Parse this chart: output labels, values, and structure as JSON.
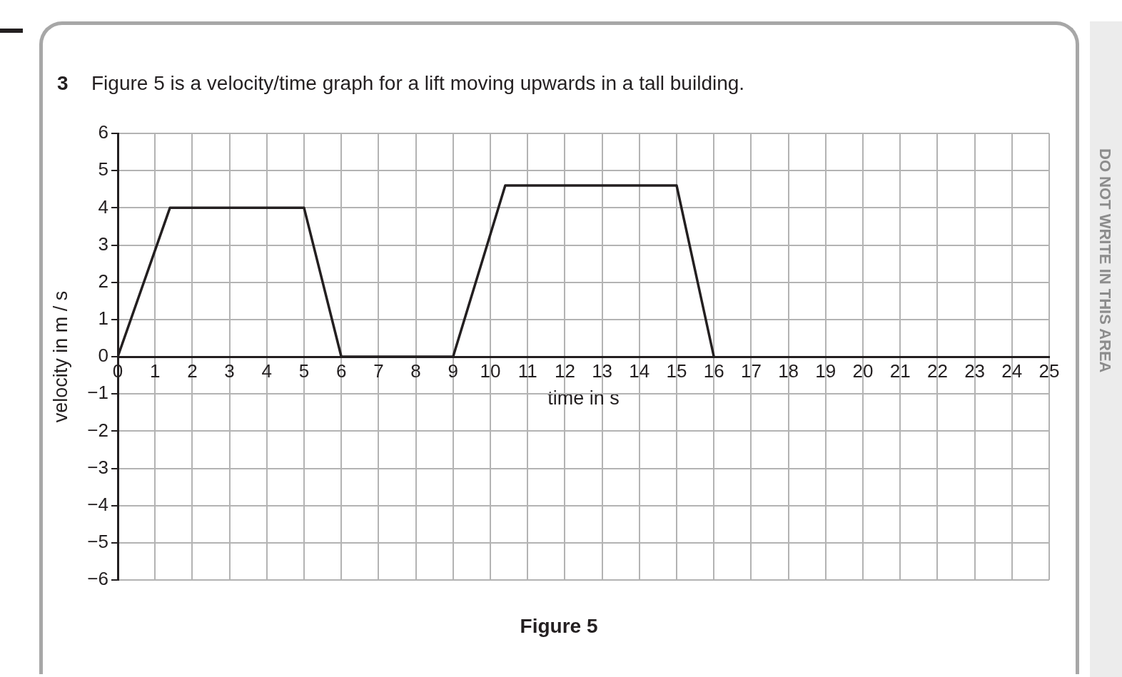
{
  "chart_data": {
    "type": "line",
    "title": "Figure 5 is a velocity/time graph for a lift moving upwards in a tall building.",
    "xlabel": "time in s",
    "ylabel": "velocity in m / s",
    "annotations": [
      "3",
      "Figure 5",
      "DO NOT WRITE IN THIS AREA"
    ],
    "x": [
      0,
      1.4,
      5,
      6,
      9,
      10.4,
      15,
      16
    ],
    "series": [
      {
        "color": "#231f20",
        "values": [
          0,
          4,
          4,
          0,
          0,
          4.6,
          4.6,
          0
        ]
      }
    ],
    "xlim": [
      0,
      25
    ],
    "xticks": [
      0,
      1,
      2,
      3,
      4,
      5,
      6,
      7,
      8,
      9,
      10,
      11,
      12,
      13,
      14,
      15,
      16,
      17,
      18,
      19,
      20,
      21,
      22,
      23,
      24,
      25
    ],
    "ylim": [
      -6,
      6
    ],
    "yticks": [
      {
        "value": -6,
        "label": "−6"
      },
      {
        "value": -5,
        "label": "−5"
      },
      {
        "value": -4,
        "label": "−4"
      },
      {
        "value": -3,
        "label": "−3"
      },
      {
        "value": -2,
        "label": "−2"
      },
      {
        "value": -1,
        "label": "−1"
      },
      0,
      1,
      2,
      3,
      4,
      5,
      6
    ],
    "grid": true,
    "marker": "none",
    "line_style": "solid"
  }
}
